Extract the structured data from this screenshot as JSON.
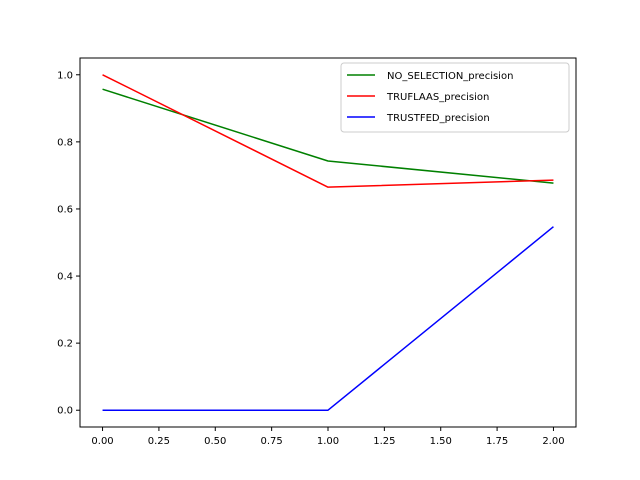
{
  "chart_data": {
    "type": "line",
    "title": "",
    "xlabel": "",
    "ylabel": "",
    "xlim": [
      -0.1,
      2.1
    ],
    "ylim": [
      -0.05,
      1.05
    ],
    "grid": false,
    "legend_position": "top-right",
    "x": [
      0,
      1,
      2
    ],
    "xticks": [
      "0.00",
      "0.25",
      "0.50",
      "0.75",
      "1.00",
      "1.25",
      "1.50",
      "1.75",
      "2.00"
    ],
    "xtick_values": [
      0,
      0.25,
      0.5,
      0.75,
      1.0,
      1.25,
      1.5,
      1.75,
      2.0
    ],
    "yticks": [
      "0.0",
      "0.2",
      "0.4",
      "0.6",
      "0.8",
      "1.0"
    ],
    "ytick_values": [
      0.0,
      0.2,
      0.4,
      0.6,
      0.8,
      1.0
    ],
    "series": [
      {
        "name": "NO_SELECTION_precision",
        "color": "#008000",
        "values": [
          0.957,
          0.743,
          0.677
        ]
      },
      {
        "name": "TRUFLAAS_precision",
        "color": "#ff0000",
        "values": [
          1.0,
          0.665,
          0.686
        ]
      },
      {
        "name": "TRUSTFED_precision",
        "color": "#0000ff",
        "values": [
          0.0,
          0.0,
          0.547
        ]
      }
    ]
  }
}
